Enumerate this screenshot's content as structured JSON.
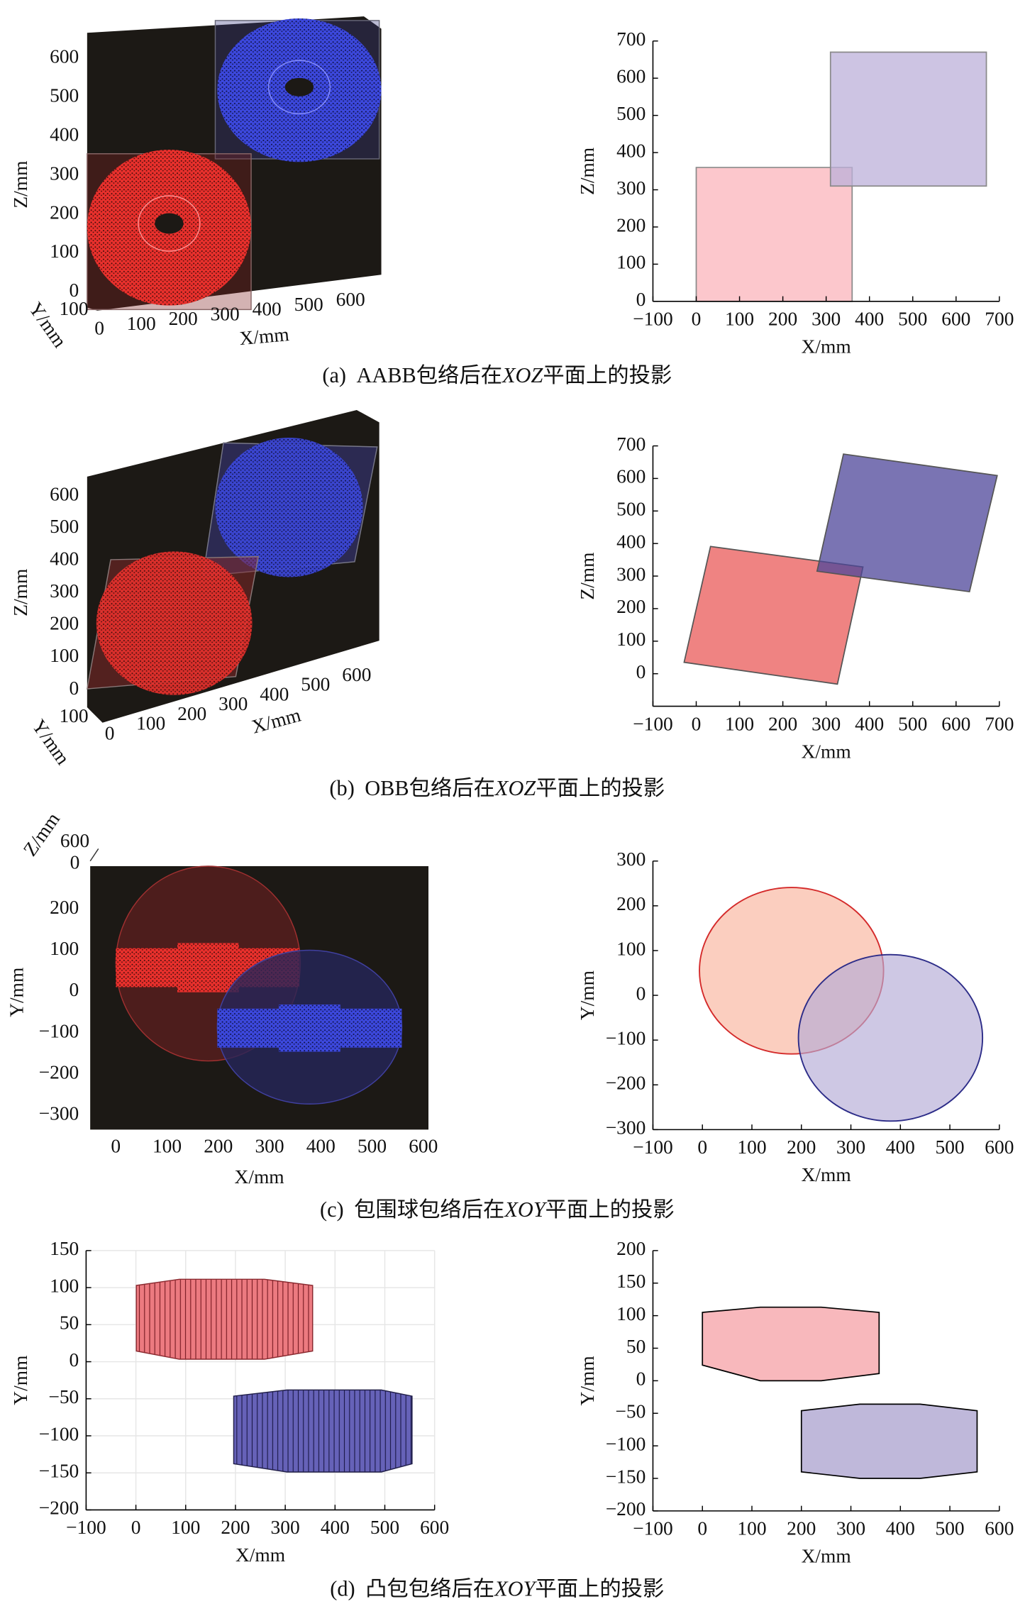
{
  "chart_data": [
    {
      "type": "scatter3d",
      "xlabel": "X/mm",
      "ylabel": "Y/mm",
      "zlabel": "Z/mm",
      "xticks": [
        0,
        100,
        200,
        300,
        400,
        500,
        600
      ],
      "yticks": [
        100
      ],
      "zticks": [
        0,
        100,
        200,
        300,
        400,
        500,
        600
      ]
    },
    {
      "type": "polygon",
      "xlabel": "X/mm",
      "ylabel": "Z/mm",
      "xlim": [
        -100,
        700
      ],
      "ylim": [
        0,
        700
      ],
      "xticks": [
        {
          "value": -100,
          "label": "−100"
        },
        0,
        100,
        200,
        300,
        400,
        500,
        600,
        700
      ],
      "yticks": [
        0,
        100,
        200,
        300,
        400,
        500,
        600,
        700
      ],
      "series": [
        {
          "color": "#fbb4bb",
          "edgecolor": "#8a8a8a",
          "x": [
            0,
            360,
            360,
            0
          ],
          "y": [
            0,
            0,
            360,
            360
          ]
        },
        {
          "color": "#bcb0da",
          "edgecolor": "#8a8a8a",
          "x": [
            310,
            670,
            670,
            310
          ],
          "y": [
            310,
            310,
            670,
            670
          ]
        }
      ]
    },
    {
      "type": "scatter3d",
      "xlabel": "X/mm",
      "ylabel": "Y/mm",
      "zlabel": "Z/mm",
      "xticks": [
        0,
        100,
        200,
        300,
        400,
        500,
        600
      ],
      "yticks": [
        100
      ],
      "zticks": [
        0,
        100,
        200,
        300,
        400,
        500,
        600
      ]
    },
    {
      "type": "polygon",
      "xlabel": "X/mm",
      "ylabel": "Z/mm",
      "xlim": [
        -100,
        700
      ],
      "ylim": [
        -100,
        700
      ],
      "xticks": [
        {
          "value": -100,
          "label": "−100"
        },
        0,
        100,
        200,
        300,
        400,
        500,
        600,
        700
      ],
      "yticks": [
        0,
        100,
        200,
        300,
        400,
        500,
        600,
        700
      ],
      "series": [
        {
          "color": "#ea5a58",
          "edgecolor": "#555555",
          "x": [
            -28,
            33,
            385,
            326
          ],
          "y": [
            35,
            391,
            328,
            -32
          ]
        },
        {
          "color": "#4e469a",
          "edgecolor": "#555555",
          "x": [
            279,
            340,
            695,
            631
          ],
          "y": [
            315,
            675,
            609,
            252
          ]
        }
      ]
    },
    {
      "type": "scatter3d",
      "xlabel": "X/mm",
      "ylabel": "Y/mm",
      "zlabel": "Z/mm",
      "xticks": [
        0,
        100,
        200,
        300,
        400,
        500,
        600
      ],
      "yticks": [
        {
          "value": -300,
          "label": "−300"
        },
        {
          "value": -200,
          "label": "−200"
        },
        {
          "value": -100,
          "label": "−100"
        },
        0,
        100,
        200
      ],
      "zticks": [
        0,
        600
      ]
    },
    {
      "type": "ellipse",
      "xlabel": "X/mm",
      "ylabel": "Y/mm",
      "xlim": [
        -100,
        600
      ],
      "ylim": [
        -300,
        300
      ],
      "xticks": [
        {
          "value": -100,
          "label": "−100"
        },
        0,
        100,
        200,
        300,
        400,
        500,
        600
      ],
      "yticks": [
        {
          "value": -300,
          "label": "−300"
        },
        {
          "value": -200,
          "label": "−200"
        },
        {
          "value": -100,
          "label": "−100"
        },
        0,
        100,
        200,
        300
      ],
      "series": [
        {
          "color": "#f9b49c",
          "edgecolor": "#d42a2a",
          "center": [
            180,
            55
          ],
          "radius": 186
        },
        {
          "color": "#b4aad6",
          "edgecolor": "#2c2c88",
          "center": [
            380,
            -95
          ],
          "radius": 186
        }
      ]
    },
    {
      "type": "mesh",
      "xlabel": "X/mm",
      "ylabel": "Y/mm",
      "xlim": [
        -100,
        600
      ],
      "ylim": [
        -200,
        150
      ],
      "grid": true,
      "xticks": [
        {
          "value": -100,
          "label": "−100"
        },
        0,
        100,
        200,
        300,
        400,
        500,
        600
      ],
      "yticks": [
        {
          "value": -200,
          "label": "−200"
        },
        {
          "value": -150,
          "label": "−150"
        },
        {
          "value": -100,
          "label": "−100"
        },
        {
          "value": -50,
          "label": "−50"
        },
        0,
        50,
        100,
        150
      ]
    },
    {
      "type": "polygon",
      "xlabel": "X/mm",
      "ylabel": "Y/mm",
      "xlim": [
        -100,
        600
      ],
      "ylim": [
        -200,
        200
      ],
      "xticks": [
        {
          "value": -100,
          "label": "−100"
        },
        0,
        100,
        200,
        300,
        400,
        500,
        600
      ],
      "yticks": [
        {
          "value": -200,
          "label": "−200"
        },
        {
          "value": -150,
          "label": "−150"
        },
        {
          "value": -100,
          "label": "−100"
        },
        {
          "value": -50,
          "label": "−50"
        },
        0,
        50,
        100,
        150,
        200
      ],
      "series": [
        {
          "color": "#f5a0a6",
          "edgecolor": "#000000",
          "x": [
            0,
            117,
            240,
            357,
            357,
            240,
            117,
            0
          ],
          "y": [
            105,
            113,
            113,
            105,
            11,
            0,
            0,
            24
          ]
        },
        {
          "color": "#a9a0ce",
          "edgecolor": "#000000",
          "x": [
            200,
            318,
            440,
            555,
            555,
            440,
            318,
            200
          ],
          "y": [
            -46,
            -36,
            -36,
            -46,
            -140,
            -150,
            -150,
            -140
          ]
        }
      ]
    }
  ],
  "captions": [
    {
      "label": "(a)",
      "before": "AABB包络后在",
      "plane": "XOZ",
      "after": "平面上的投影"
    },
    {
      "label": "(b)",
      "before": "OBB包络后在",
      "plane": "XOZ",
      "after": "平面上的投影"
    },
    {
      "label": "(c)",
      "before": "包围球包络后在",
      "plane": "XOY",
      "after": "平面上的投影"
    },
    {
      "label": "(d)",
      "before": "凸包包络后在",
      "plane": "XOY",
      "after": "平面上的投影"
    }
  ]
}
